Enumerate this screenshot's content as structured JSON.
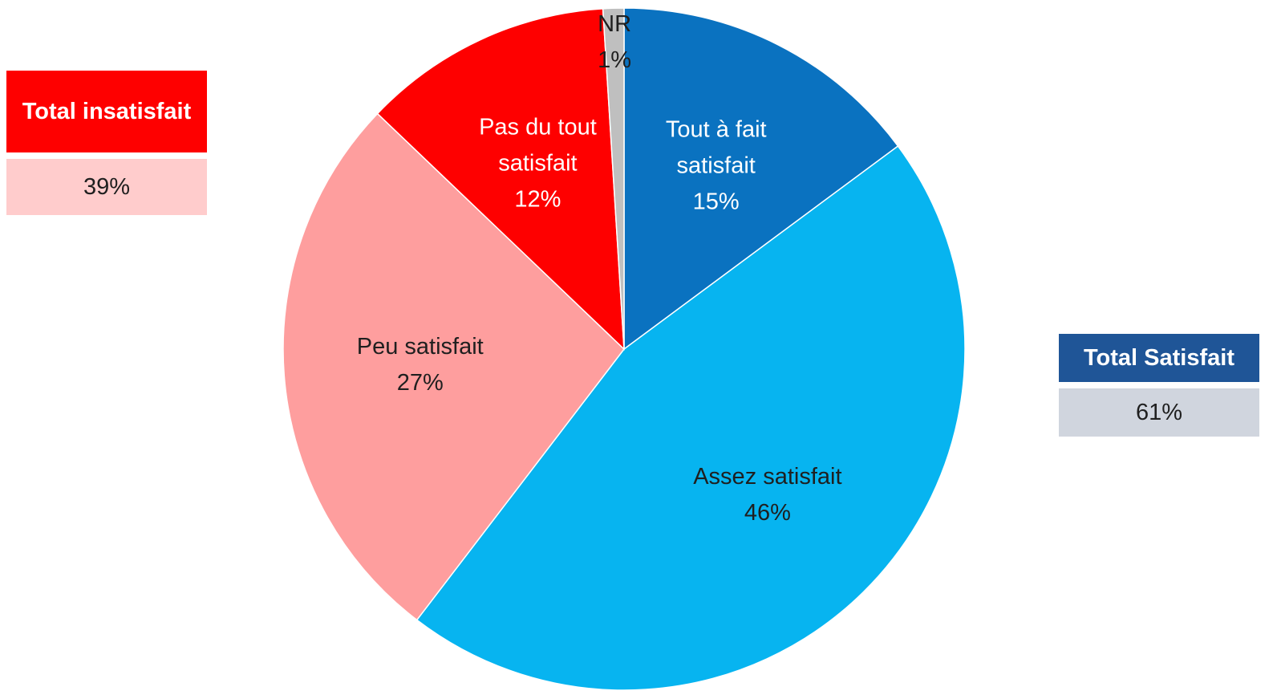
{
  "chart_data": {
    "type": "pie",
    "categories": [
      "Tout à fait satisfait",
      "Assez satisfait",
      "Peu satisfait",
      "Pas du tout satisfait",
      "NR"
    ],
    "values": [
      15,
      46,
      27,
      12,
      1
    ],
    "value_labels": [
      "15%",
      "46%",
      "27%",
      "12%",
      "1%"
    ],
    "colors": [
      "#0a72c0",
      "#07b4f0",
      "#fe9e9e",
      "#fe0000",
      "#bfbfbf"
    ],
    "label_colors": [
      "#ffffff",
      "#1f1f1f",
      "#1f1f1f",
      "#ffffff",
      "#1f1f1f"
    ],
    "annotations": [
      {
        "label": "Total insatisfait",
        "value": 39,
        "value_label": "39%",
        "color": "#fe0000",
        "value_color": "#ffcccc"
      },
      {
        "label": "Total Satisfait",
        "value": 61,
        "value_label": "61%",
        "color": "#1f5597",
        "value_color": "#d0d5de"
      }
    ]
  }
}
